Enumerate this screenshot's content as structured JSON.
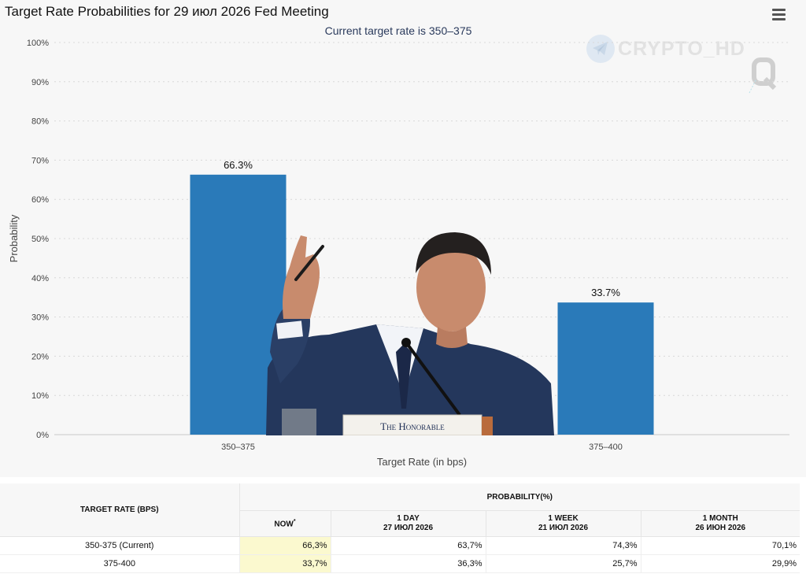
{
  "title": "Target Rate Probabilities for 29 июл 2026 Fed Meeting",
  "subtitle": "Current target rate is 350–375",
  "watermark": "CRYPTO_HD",
  "watermark_logo": "Q",
  "photo_placard": "The Honorable",
  "colors": {
    "bar": "#2a7ab9",
    "grid": "#d8d8d8",
    "now_highlight": "#fbf9cf"
  },
  "chart_data": {
    "type": "bar",
    "title": "Target Rate Probabilities for 29 июл 2026 Fed Meeting",
    "subtitle": "Current target rate is 350–375",
    "xlabel": "Target Rate (in bps)",
    "ylabel": "Probability",
    "categories": [
      "350–375",
      "375–400"
    ],
    "values": [
      66.3,
      33.7
    ],
    "data_labels": [
      "66.3%",
      "33.7%"
    ],
    "ylim": [
      0,
      100
    ],
    "yticks": [
      "0%",
      "10%",
      "20%",
      "30%",
      "40%",
      "50%",
      "60%",
      "70%",
      "80%",
      "90%",
      "100%"
    ],
    "grid": true,
    "legend": "none"
  },
  "table": {
    "target_header": "TARGET RATE (BPS)",
    "prob_header": "PROBABILITY(%)",
    "columns": [
      {
        "label": "NOW",
        "marker": "*",
        "date": ""
      },
      {
        "label": "1 DAY",
        "date": "27 ИЮЛ 2026"
      },
      {
        "label": "1 WEEK",
        "date": "21 ИЮЛ 2026"
      },
      {
        "label": "1 MONTH",
        "date": "26 ИЮН 2026"
      }
    ],
    "rows": [
      {
        "label": "350-375 (Current)",
        "values": [
          "66,3%",
          "63,7%",
          "74,3%",
          "70,1%"
        ]
      },
      {
        "label": "375-400",
        "values": [
          "33,7%",
          "36,3%",
          "25,7%",
          "29,9%"
        ]
      }
    ]
  }
}
